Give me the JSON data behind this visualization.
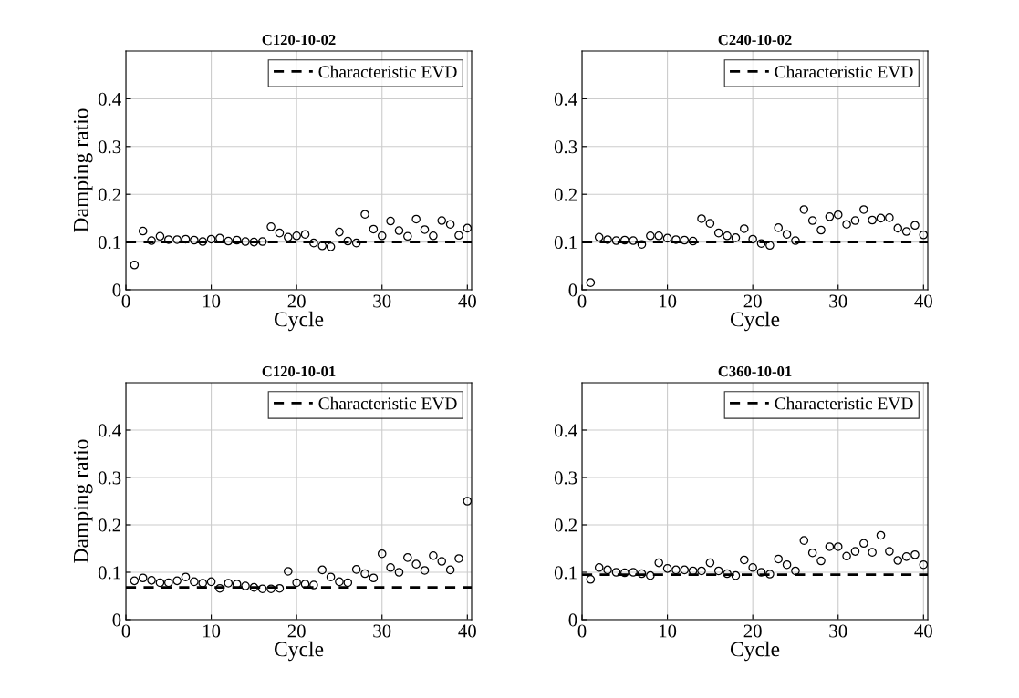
{
  "chart_data": [
    {
      "type": "scatter",
      "title": "C120-10-02",
      "xlabel": "Cycle",
      "ylabel": "Damping ratio",
      "x": [
        1,
        2,
        3,
        4,
        5,
        6,
        7,
        8,
        9,
        10,
        11,
        12,
        13,
        14,
        15,
        16,
        17,
        18,
        19,
        20,
        21,
        22,
        23,
        24,
        25,
        26,
        27,
        28,
        29,
        30,
        31,
        32,
        33,
        34,
        35,
        36,
        37,
        38,
        39,
        40
      ],
      "series": [
        {
          "color": "#000000",
          "values": [
            0.052,
            0.123,
            0.103,
            0.112,
            0.105,
            0.105,
            0.106,
            0.104,
            0.101,
            0.106,
            0.108,
            0.102,
            0.104,
            0.101,
            0.1,
            0.101,
            0.132,
            0.119,
            0.11,
            0.113,
            0.116,
            0.098,
            0.092,
            0.09,
            0.121,
            0.102,
            0.098,
            0.158,
            0.127,
            0.113,
            0.144,
            0.124,
            0.112,
            0.148,
            0.126,
            0.113,
            0.145,
            0.137,
            0.114,
            0.129
          ]
        }
      ],
      "ref_lines": [
        {
          "axis": "y",
          "value": 0.1,
          "label": "Characteristic EVD",
          "color": "#000000",
          "line_style": "dashed"
        }
      ],
      "xlim": [
        0,
        40.5
      ],
      "ylim": [
        0,
        0.5
      ],
      "xticks": [
        0,
        10,
        20,
        30,
        40
      ],
      "yticks": [
        0,
        0.1,
        0.2,
        0.3,
        0.4
      ],
      "grid": true,
      "legend": "top right",
      "marker": "circle"
    },
    {
      "type": "scatter",
      "title": "C240-10-02",
      "xlabel": "Cycle",
      "x": [
        1,
        2,
        3,
        4,
        5,
        6,
        7,
        8,
        9,
        10,
        11,
        12,
        13,
        14,
        15,
        16,
        17,
        18,
        19,
        20,
        21,
        22,
        23,
        24,
        25,
        26,
        27,
        28,
        29,
        30,
        31,
        32,
        33,
        34,
        35,
        36,
        37,
        38,
        39,
        40
      ],
      "series": [
        {
          "color": "#000000",
          "values": [
            0.015,
            0.11,
            0.105,
            0.103,
            0.104,
            0.103,
            0.095,
            0.113,
            0.113,
            0.108,
            0.105,
            0.104,
            0.102,
            0.149,
            0.139,
            0.119,
            0.113,
            0.109,
            0.128,
            0.106,
            0.097,
            0.093,
            0.13,
            0.116,
            0.103,
            0.168,
            0.145,
            0.125,
            0.153,
            0.157,
            0.137,
            0.145,
            0.168,
            0.146,
            0.15,
            0.151,
            0.129,
            0.122,
            0.135,
            0.115
          ]
        }
      ],
      "ref_lines": [
        {
          "axis": "y",
          "value": 0.1,
          "label": "Characteristic EVD",
          "color": "#000000",
          "line_style": "dashed"
        }
      ],
      "xlim": [
        0,
        40.5
      ],
      "ylim": [
        0,
        0.5
      ],
      "xticks": [
        0,
        10,
        20,
        30,
        40
      ],
      "yticks": [
        0,
        0.1,
        0.2,
        0.3,
        0.4
      ],
      "grid": true,
      "legend": "top right",
      "marker": "circle"
    },
    {
      "type": "scatter",
      "title": "C120-10-01",
      "xlabel": "Cycle",
      "ylabel": "Damping ratio",
      "x": [
        1,
        2,
        3,
        4,
        5,
        6,
        7,
        8,
        9,
        10,
        11,
        12,
        13,
        14,
        15,
        16,
        17,
        18,
        19,
        20,
        21,
        22,
        23,
        24,
        25,
        26,
        27,
        28,
        29,
        30,
        31,
        32,
        33,
        34,
        35,
        36,
        37,
        38,
        39,
        40
      ],
      "series": [
        {
          "color": "#000000",
          "values": [
            0.082,
            0.088,
            0.083,
            0.078,
            0.078,
            0.082,
            0.09,
            0.08,
            0.077,
            0.08,
            0.066,
            0.077,
            0.075,
            0.071,
            0.068,
            0.065,
            0.065,
            0.066,
            0.102,
            0.078,
            0.075,
            0.073,
            0.105,
            0.09,
            0.08,
            0.078,
            0.106,
            0.097,
            0.088,
            0.139,
            0.11,
            0.1,
            0.131,
            0.117,
            0.104,
            0.135,
            0.123,
            0.105,
            0.129,
            0.25
          ]
        }
      ],
      "ref_lines": [
        {
          "axis": "y",
          "value": 0.068,
          "label": "Characteristic EVD",
          "color": "#000000",
          "line_style": "dashed"
        }
      ],
      "xlim": [
        0,
        40.5
      ],
      "ylim": [
        0,
        0.5
      ],
      "xticks": [
        0,
        10,
        20,
        30,
        40
      ],
      "yticks": [
        0,
        0.1,
        0.2,
        0.3,
        0.4
      ],
      "grid": true,
      "legend": "top right",
      "marker": "circle"
    },
    {
      "type": "scatter",
      "title": "C360-10-01",
      "xlabel": "Cycle",
      "x": [
        1,
        2,
        3,
        4,
        5,
        6,
        7,
        8,
        9,
        10,
        11,
        12,
        13,
        14,
        15,
        16,
        17,
        18,
        19,
        20,
        21,
        22,
        23,
        24,
        25,
        26,
        27,
        28,
        29,
        30,
        31,
        32,
        33,
        34,
        35,
        36,
        37,
        38,
        39,
        40
      ],
      "series": [
        {
          "color": "#000000",
          "values": [
            0.085,
            0.11,
            0.105,
            0.1,
            0.099,
            0.1,
            0.097,
            0.093,
            0.12,
            0.108,
            0.105,
            0.105,
            0.103,
            0.103,
            0.12,
            0.103,
            0.097,
            0.093,
            0.126,
            0.11,
            0.1,
            0.096,
            0.128,
            0.116,
            0.103,
            0.167,
            0.141,
            0.124,
            0.154,
            0.154,
            0.134,
            0.144,
            0.161,
            0.142,
            0.178,
            0.144,
            0.125,
            0.133,
            0.137,
            0.116
          ]
        }
      ],
      "ref_lines": [
        {
          "axis": "y",
          "value": 0.095,
          "label": "Characteristic EVD",
          "color": "#000000",
          "line_style": "dashed"
        }
      ],
      "xlim": [
        0,
        40.5
      ],
      "ylim": [
        0,
        0.5
      ],
      "xticks": [
        0,
        10,
        20,
        30,
        40
      ],
      "yticks": [
        0,
        0.1,
        0.2,
        0.3,
        0.4
      ],
      "grid": true,
      "legend": "top right",
      "marker": "circle"
    }
  ]
}
